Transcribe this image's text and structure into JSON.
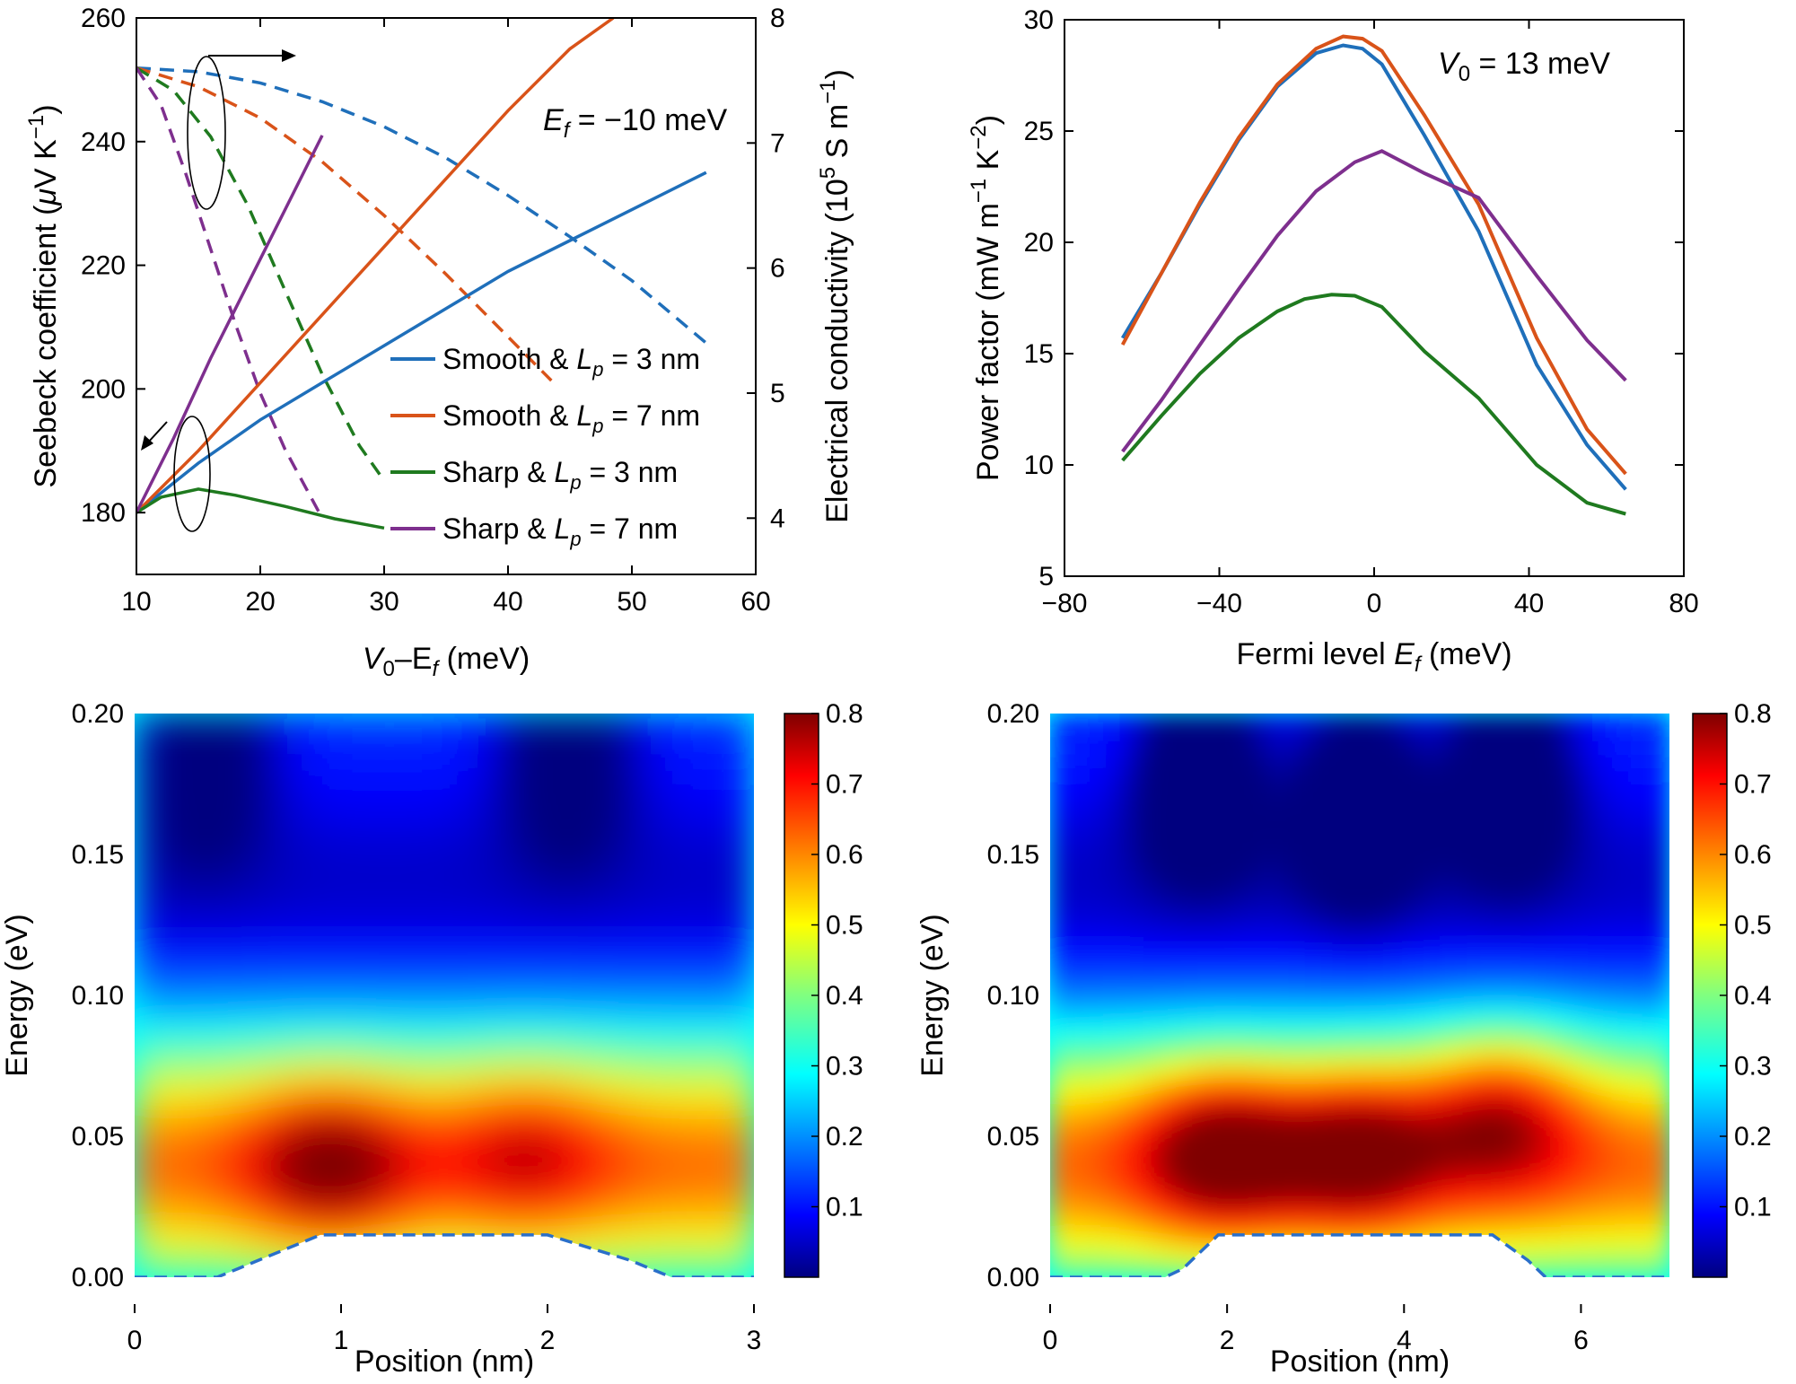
{
  "colors": {
    "smooth3": "#1f6fba",
    "smooth7": "#d95319",
    "sharp3": "#1f7a1f",
    "sharp7": "#7e2f8e",
    "profile": "#2a6fc9"
  },
  "chart_data": [
    {
      "panel": "top-left",
      "type": "line",
      "annotation_prefix": "E",
      "annotation_sub": "f",
      "annotation_suffix": " = −10 meV",
      "xlabel_a": "V",
      "xlabel_a_sub": "0",
      "xlabel_b": "–E",
      "xlabel_b_sub": "f",
      "xlabel_c": " (meV)",
      "ylabel_pre": "Seebeck coefficient (",
      "ylabel_mu": "μ",
      "ylabel_post": "V K",
      "ylabel_sup": "−1",
      "ylabel_close": ")",
      "y2label_pre": "Electrical conductivity (10",
      "y2label_sup": "5",
      "y2label_mid": " S m",
      "y2label_sup2": "−1",
      "y2label_close": ")",
      "xlim": [
        10,
        60
      ],
      "ylim": [
        170,
        260
      ],
      "y2lim": [
        3.55,
        8
      ],
      "xticks": [
        "10",
        "20",
        "30",
        "40",
        "50",
        "60"
      ],
      "yticks": [
        "180",
        "200",
        "220",
        "240",
        "260"
      ],
      "y2ticks": [
        "4",
        "5",
        "6",
        "7",
        "8"
      ],
      "legend_position": "right-middle",
      "legend": [
        {
          "text": "Smooth & ",
          "var": "L",
          "sub": "p",
          "rest": " = 3 nm"
        },
        {
          "text": "Smooth & ",
          "var": "L",
          "sub": "p",
          "rest": " = 7 nm"
        },
        {
          "text": "Sharp & ",
          "var": "L",
          "sub": "p",
          "rest": " = 3 nm"
        },
        {
          "text": "Sharp & ",
          "var": "L",
          "sub": "p",
          "rest": " = 7 nm"
        }
      ],
      "seebeck_series": [
        {
          "color_key": "smooth3",
          "x": [
            10,
            15,
            20,
            25,
            30,
            35,
            40,
            45,
            50,
            56
          ],
          "y": [
            180,
            188,
            195,
            201,
            207,
            213,
            219,
            224,
            229,
            235
          ]
        },
        {
          "color_key": "smooth7",
          "x": [
            10,
            15,
            20,
            25,
            30,
            35,
            40,
            45,
            48.5
          ],
          "y": [
            180,
            190,
            201,
            212,
            223,
            234,
            245,
            255,
            260
          ]
        },
        {
          "color_key": "sharp3",
          "x": [
            10,
            12,
            15,
            18,
            22,
            26,
            30
          ],
          "y": [
            180,
            182.5,
            183.8,
            182.8,
            181,
            179,
            177.5
          ]
        },
        {
          "color_key": "sharp7",
          "x": [
            10,
            13,
            16,
            19,
            22,
            25
          ],
          "y": [
            180,
            192,
            205,
            217,
            229,
            241
          ]
        }
      ],
      "conductivity_series": [
        {
          "color_key": "smooth3",
          "x": [
            10,
            15,
            20,
            25,
            30,
            35,
            40,
            45,
            50,
            56
          ],
          "y": [
            7.6,
            7.57,
            7.48,
            7.33,
            7.13,
            6.88,
            6.58,
            6.25,
            5.9,
            5.4
          ]
        },
        {
          "color_key": "smooth7",
          "x": [
            10,
            15,
            20,
            25,
            30,
            35,
            40,
            43.5
          ],
          "y": [
            7.6,
            7.45,
            7.2,
            6.85,
            6.42,
            5.95,
            5.45,
            5.1
          ]
        },
        {
          "color_key": "sharp3",
          "x": [
            10,
            13,
            16,
            19,
            22,
            25,
            28,
            30
          ],
          "y": [
            7.6,
            7.42,
            7.05,
            6.5,
            5.82,
            5.15,
            4.58,
            4.3
          ]
        },
        {
          "color_key": "sharp7",
          "x": [
            10,
            12,
            14,
            16,
            18,
            20,
            22,
            25
          ],
          "y": [
            7.6,
            7.3,
            6.75,
            6.15,
            5.55,
            5.0,
            4.55,
            4.0
          ]
        }
      ]
    },
    {
      "panel": "top-right",
      "type": "line",
      "annotation_prefix": "V",
      "annotation_sub": "0",
      "annotation_suffix": " = 13 meV",
      "xlabel_a": "Fermi level ",
      "xlabel_var": "E",
      "xlabel_sub": "f",
      "xlabel_c": " (meV)",
      "ylabel_pre": "Power factor (mW m",
      "ylabel_sup": "−1",
      "ylabel_mid": " K",
      "ylabel_sup2": "−2",
      "ylabel_close": ")",
      "xlim": [
        -80,
        80
      ],
      "ylim": [
        5,
        30
      ],
      "xticks": [
        "−80",
        "−40",
        "0",
        "40",
        "80"
      ],
      "yticks": [
        "5",
        "10",
        "15",
        "20",
        "25",
        "30"
      ],
      "series": [
        {
          "color_key": "smooth3",
          "x": [
            -65,
            -55,
            -45,
            -35,
            -25,
            -15,
            -8,
            -3,
            2,
            13,
            27,
            42,
            55,
            65
          ],
          "y": [
            15.7,
            18.6,
            21.7,
            24.6,
            27,
            28.5,
            28.85,
            28.7,
            28,
            24.8,
            20.5,
            14.5,
            10.9,
            8.9
          ]
        },
        {
          "color_key": "smooth7",
          "x": [
            -65,
            -55,
            -45,
            -35,
            -25,
            -15,
            -8,
            -3,
            2,
            13,
            27,
            42,
            55,
            65
          ],
          "y": [
            15.4,
            18.6,
            21.8,
            24.7,
            27.1,
            28.7,
            29.25,
            29.15,
            28.6,
            25.7,
            21.7,
            15.7,
            11.6,
            9.6
          ]
        },
        {
          "color_key": "sharp3",
          "x": [
            -65,
            -55,
            -45,
            -35,
            -25,
            -18,
            -11,
            -5,
            2,
            13,
            27,
            42,
            55,
            65
          ],
          "y": [
            10.2,
            12.2,
            14.1,
            15.7,
            16.9,
            17.45,
            17.65,
            17.6,
            17.1,
            15.1,
            13,
            10,
            8.3,
            7.8
          ]
        },
        {
          "color_key": "sharp7",
          "x": [
            -65,
            -55,
            -45,
            -35,
            -25,
            -15,
            -5,
            2,
            13,
            27,
            42,
            55,
            65
          ],
          "y": [
            10.6,
            12.9,
            15.4,
            17.9,
            20.3,
            22.3,
            23.6,
            24.1,
            23.1,
            22,
            18.5,
            15.6,
            13.8
          ]
        }
      ]
    },
    {
      "panel": "bottom-left",
      "type": "heatmap",
      "xlabel": "Position (nm)",
      "ylabel": "Energy (eV)",
      "xlim": [
        0,
        3
      ],
      "ylim": [
        0,
        0.2
      ],
      "clim": [
        0,
        0.8
      ],
      "xticks": [
        "0",
        "1",
        "2",
        "3"
      ],
      "yticks": [
        "0.00",
        "0.05",
        "0.10",
        "0.15",
        "0.20"
      ],
      "cticks": [
        "0.1",
        "0.2",
        "0.3",
        "0.4",
        "0.5",
        "0.6",
        "0.7",
        "0.8"
      ],
      "colormap": "jet",
      "barrier_profile": {
        "x": [
          0,
          0.4,
          0.5,
          0.9,
          2.0,
          2.4,
          2.6,
          3.0
        ],
        "y": [
          0,
          0,
          0.003,
          0.015,
          0.015,
          0.006,
          0,
          0
        ]
      },
      "features": {
        "peaks": [
          [
            0.95,
            0.04,
            0.8
          ],
          [
            1.9,
            0.045,
            0.72
          ]
        ],
        "minima": [
          [
            0.35,
            0.19
          ],
          [
            2.1,
            0.19
          ]
        ]
      }
    },
    {
      "panel": "bottom-right",
      "type": "heatmap",
      "xlabel": "Position (nm)",
      "ylabel": "Energy (eV)",
      "xlim": [
        0,
        7
      ],
      "ylim": [
        0,
        0.2
      ],
      "clim": [
        0,
        0.8
      ],
      "xticks": [
        "0",
        "2",
        "4",
        "6"
      ],
      "yticks": [
        "0.00",
        "0.05",
        "0.10",
        "0.15",
        "0.20"
      ],
      "cticks": [
        "0.1",
        "0.2",
        "0.3",
        "0.4",
        "0.5",
        "0.6",
        "0.7",
        "0.8"
      ],
      "colormap": "jet",
      "barrier_profile": {
        "x": [
          0,
          1.3,
          1.5,
          1.9,
          5.0,
          5.4,
          5.6,
          7.0
        ],
        "y": [
          0,
          0,
          0.003,
          0.015,
          0.015,
          0.006,
          0,
          0
        ]
      },
      "features": {
        "peaks": [
          [
            1.95,
            0.045,
            0.82
          ],
          [
            3.5,
            0.045,
            0.8
          ],
          [
            5.1,
            0.06,
            0.78
          ]
        ],
        "minima": [
          [
            1.7,
            0.18
          ],
          [
            3.5,
            0.17
          ],
          [
            5.2,
            0.18
          ]
        ]
      }
    }
  ]
}
